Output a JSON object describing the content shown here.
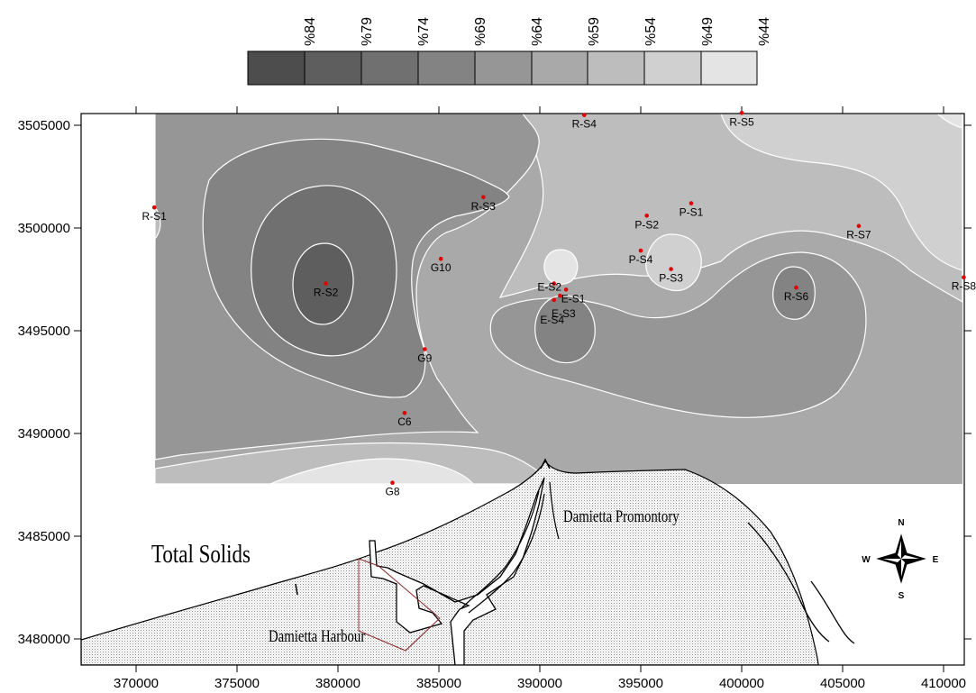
{
  "map": {
    "title": "Total Solids",
    "place_labels": {
      "promontory": "Damietta Promontory",
      "harbour": "Damietta Harbour"
    },
    "compass": {
      "north": "N",
      "south": "S",
      "east": "E",
      "west": "W"
    }
  },
  "legend": {
    "items": [
      {
        "label": "%84",
        "color": "#4d4d4d"
      },
      {
        "label": "%79",
        "color": "#5e5e5e"
      },
      {
        "label": "%74",
        "color": "#707070"
      },
      {
        "label": "%69",
        "color": "#838383"
      },
      {
        "label": "%64",
        "color": "#969696"
      },
      {
        "label": "%59",
        "color": "#a9a9a9"
      },
      {
        "label": "%54",
        "color": "#bdbdbd"
      },
      {
        "label": "%49",
        "color": "#d0d0d0"
      },
      {
        "label": "%44",
        "color": "#e4e4e4"
      }
    ]
  },
  "axes": {
    "x_ticks": [
      "370000",
      "375000",
      "380000",
      "385000",
      "390000",
      "395000",
      "400000",
      "405000",
      "410000"
    ],
    "y_ticks": [
      "3480000",
      "3485000",
      "3490000",
      "3495000",
      "3500000",
      "3505000"
    ]
  },
  "stations": [
    {
      "name": "R-S1",
      "x": 370900,
      "y": 3501000
    },
    {
      "name": "R-S2",
      "x": 379400,
      "y": 3497300
    },
    {
      "name": "R-S3",
      "x": 387200,
      "y": 3501500
    },
    {
      "name": "R-S4",
      "x": 392200,
      "y": 3505500
    },
    {
      "name": "R-S5",
      "x": 400000,
      "y": 3505600
    },
    {
      "name": "R-S6",
      "x": 402700,
      "y": 3497100
    },
    {
      "name": "R-S7",
      "x": 405800,
      "y": 3500100
    },
    {
      "name": "R-S8",
      "x": 411000,
      "y": 3497600
    },
    {
      "name": "G10",
      "x": 385100,
      "y": 3498500
    },
    {
      "name": "G9",
      "x": 384300,
      "y": 3494100
    },
    {
      "name": "C6",
      "x": 383300,
      "y": 3491000
    },
    {
      "name": "G8",
      "x": 382700,
      "y": 3487600
    },
    {
      "name": "P-S1",
      "x": 397500,
      "y": 3501200
    },
    {
      "name": "P-S2",
      "x": 395300,
      "y": 3500600
    },
    {
      "name": "P-S3",
      "x": 396500,
      "y": 3498000
    },
    {
      "name": "P-S4",
      "x": 395000,
      "y": 3498900
    },
    {
      "name": "E-S2",
      "x": 390700,
      "y": 3497300
    },
    {
      "name": "E-S1",
      "x": 391300,
      "y": 3497000
    },
    {
      "name": "E-S3",
      "x": 391000,
      "y": 3496700
    },
    {
      "name": "E-S4",
      "x": 390700,
      "y": 3496500
    }
  ]
}
